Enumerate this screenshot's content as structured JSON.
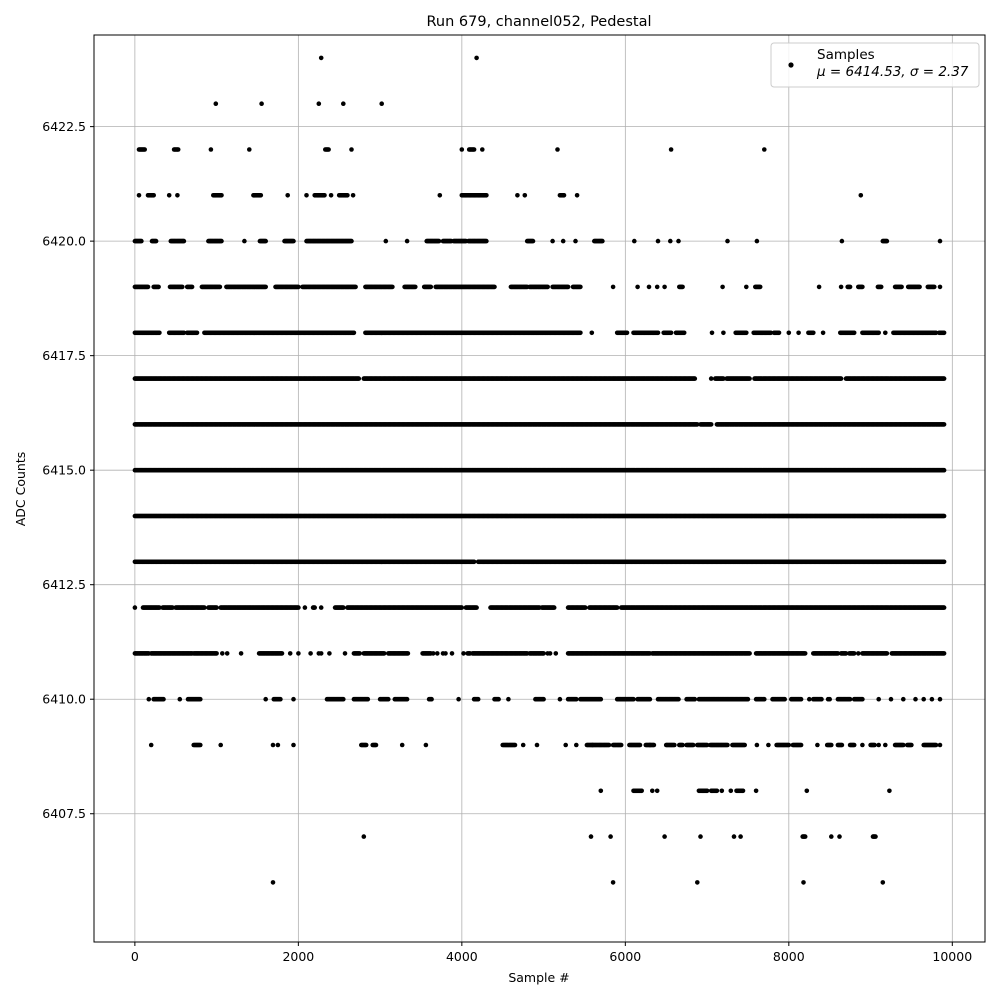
{
  "chart_data": {
    "type": "scatter",
    "title": "Run 679, channel052, Pedestal",
    "xlabel": "Sample #",
    "ylabel": "ADC Counts",
    "xlim": [
      -500,
      10400
    ],
    "ylim": [
      6404.7,
      6424.5
    ],
    "x_ticks": [
      0,
      2000,
      4000,
      6000,
      8000,
      10000
    ],
    "y_ticks": [
      6407.5,
      6410.0,
      6412.5,
      6415.0,
      6417.5,
      6420.0,
      6422.5
    ],
    "x_tick_labels": [
      "0",
      "2000",
      "4000",
      "6000",
      "8000",
      "10000"
    ],
    "y_tick_labels": [
      "6407.5",
      "6410.0",
      "6412.5",
      "6415.0",
      "6417.5",
      "6420.0",
      "6422.5"
    ],
    "grid": true,
    "legend": {
      "placement": "top-right",
      "entries": [
        {
          "name": "Samples",
          "stats": "μ = 6414.53, σ = 2.37"
        }
      ]
    },
    "marker_color": "#000000",
    "series": [
      {
        "name": "Samples",
        "runs": [
          {
            "y": 6424,
            "x": [
              2280,
              4180
            ]
          },
          {
            "y": 6423,
            "x": [
              990,
              1550,
              2250,
              2550,
              3020
            ]
          },
          {
            "y": 6422,
            "x": [
              [
                50,
                120
              ],
              1400,
              [
                480,
                530
              ],
              930,
              [
                2330,
                2370
              ],
              2650,
              4000,
              [
                4090,
                4150
              ],
              4250,
              5170,
              6560,
              7700
            ]
          },
          {
            "y": 6421,
            "x": [
              50,
              [
                160,
                230
              ],
              420,
              520,
              [
                960,
                1060
              ],
              [
                1450,
                1540
              ],
              1870,
              2100,
              [
                2200,
                2320
              ],
              2400,
              [
                2500,
                2600
              ],
              2670,
              3730,
              [
                4000,
                4300
              ],
              4680,
              4770,
              [
                5200,
                5250
              ],
              5410,
              8880
            ]
          },
          {
            "y": 6420,
            "x": [
              [
                0,
                80
              ],
              [
                210,
                260
              ],
              [
                440,
                600
              ],
              [
                900,
                1060
              ],
              1340,
              [
                1530,
                1600
              ],
              [
                1830,
                1940
              ],
              [
                2100,
                2650
              ],
              3070,
              3330,
              [
                3570,
                3720
              ],
              [
                3770,
                3870
              ],
              [
                3900,
                4050
              ],
              [
                4080,
                4300
              ],
              [
                4800,
                4870
              ],
              5110,
              5240,
              5390,
              [
                5620,
                5720
              ],
              6110,
              6400,
              6550,
              6650,
              7250,
              7610,
              8650,
              [
                9150,
                9200
              ],
              9850
            ]
          },
          {
            "y": 6419,
            "x": [
              [
                0,
                160
              ],
              [
                230,
                290
              ],
              [
                430,
                580
              ],
              [
                640,
                700
              ],
              [
                820,
                1040
              ],
              [
                1120,
                1600
              ],
              [
                1720,
                2000
              ],
              [
                2050,
                2700
              ],
              [
                2820,
                3150
              ],
              [
                3300,
                3430
              ],
              [
                3540,
                3620
              ],
              [
                3680,
                4400
              ],
              [
                4600,
                4800
              ],
              [
                4830,
                5050
              ],
              [
                5110,
                5300
              ],
              [
                5360,
                5450
              ],
              5850,
              6150,
              6290,
              6390,
              6480,
              [
                6660,
                6700
              ],
              7190,
              7480,
              [
                7590,
                7650
              ],
              8370,
              8640,
              [
                8720,
                8750
              ],
              [
                8850,
                8900
              ],
              [
                9090,
                9130
              ],
              [
                9300,
                9380
              ],
              [
                9460,
                9600
              ],
              [
                9700,
                9780
              ],
              9850
            ]
          },
          {
            "y": 6418,
            "x": [
              [
                0,
                300
              ],
              [
                420,
                600
              ],
              [
                640,
                760
              ],
              [
                850,
                2120
              ],
              [
                2130,
                2680
              ],
              [
                2820,
                5450
              ],
              5590,
              [
                5900,
                6020
              ],
              [
                6100,
                6400
              ],
              [
                6470,
                6560
              ],
              [
                6620,
                6720
              ],
              7060,
              7200,
              [
                7350,
                7480
              ],
              [
                7570,
                7780
              ],
              [
                7820,
                7880
              ],
              8000,
              8120,
              [
                8240,
                8300
              ],
              8420,
              [
                8630,
                8800
              ],
              [
                8900,
                9100
              ],
              9180,
              [
                9280,
                9800
              ],
              [
                9840,
                9900
              ]
            ]
          },
          {
            "y": 6417,
            "x": [
              [
                0,
                2740
              ],
              [
                2800,
                6850
              ],
              7050,
              [
                7100,
                7200
              ],
              [
                7240,
                7520
              ],
              [
                7580,
                8640
              ],
              [
                8700,
                9900
              ]
            ]
          },
          {
            "y": 6416,
            "x": [
              [
                0,
                6880
              ],
              [
                6920,
                7050
              ],
              [
                7120,
                9900
              ]
            ]
          },
          {
            "y": 6415,
            "x": [
              [
                0,
                9900
              ]
            ]
          },
          {
            "y": 6414,
            "x": [
              [
                0,
                9900
              ]
            ]
          },
          {
            "y": 6413,
            "x": [
              [
                0,
                4150
              ],
              [
                4200,
                9900
              ]
            ]
          },
          {
            "y": 6412,
            "x": [
              0,
              [
                100,
                300
              ],
              [
                340,
                460
              ],
              [
                500,
                850
              ],
              [
                900,
                1000
              ],
              [
                1050,
                2000
              ],
              2080,
              [
                2180,
                2200
              ],
              2280,
              [
                2450,
                2550
              ],
              [
                2600,
                4000
              ],
              [
                4050,
                4180
              ],
              [
                4350,
                4950
              ],
              [
                4980,
                5130
              ],
              [
                5300,
                5510
              ],
              [
                5560,
                5900
              ],
              [
                5950,
                9900
              ]
            ]
          },
          {
            "y": 6411,
            "x": [
              [
                0,
                170
              ],
              [
                200,
                700
              ],
              [
                720,
                1000
              ],
              1070,
              1130,
              1300,
              [
                1520,
                1800
              ],
              1900,
              2000,
              2150,
              2250,
              2280,
              2380,
              2570,
              [
                2680,
                2750
              ],
              [
                2800,
                3050
              ],
              [
                3100,
                3340
              ],
              [
                3520,
                3620
              ],
              3650,
              3700,
              3770,
              3800,
              3880,
              4020,
              [
                4070,
                4100
              ],
              [
                4130,
                4800
              ],
              [
                4830,
                5000
              ],
              5050,
              5080,
              5150,
              [
                5300,
                6300
              ],
              [
                6330,
                7520
              ],
              [
                7600,
                8200
              ],
              [
                8300,
                8600
              ],
              [
                8640,
                8700
              ],
              [
                8740,
                8800
              ],
              8850,
              [
                8900,
                9200
              ],
              [
                9260,
                9900
              ]
            ]
          },
          {
            "y": 6410,
            "x": [
              170,
              [
                230,
                350
              ],
              550,
              [
                650,
                800
              ],
              1600,
              [
                1700,
                1780
              ],
              1940,
              [
                2350,
                2550
              ],
              [
                2680,
                2850
              ],
              [
                3000,
                3100
              ],
              [
                3180,
                3330
              ],
              [
                3600,
                3630
              ],
              3960,
              [
                4150,
                4200
              ],
              [
                4400,
                4450
              ],
              4570,
              [
                4900,
                5000
              ],
              5200,
              [
                5300,
                5400
              ],
              [
                5450,
                5700
              ],
              [
                5900,
                6100
              ],
              [
                6150,
                6300
              ],
              [
                6400,
                6650
              ],
              [
                6750,
                6850
              ],
              [
                6900,
                7500
              ],
              [
                7600,
                7700
              ],
              [
                7800,
                7950
              ],
              [
                8030,
                8150
              ],
              8250,
              [
                8300,
                8400
              ],
              8480,
              8500,
              [
                8600,
                8750
              ],
              [
                8800,
                8900
              ],
              9100,
              9250,
              9400,
              9550,
              9650,
              9750,
              9850
            ]
          },
          {
            "y": 6409,
            "x": [
              200,
              [
                720,
                800
              ],
              1050,
              1690,
              1750,
              1940,
              [
                2770,
                2830
              ],
              [
                2910,
                2950
              ],
              3270,
              3560,
              [
                4500,
                4650
              ],
              4750,
              4920,
              5270,
              5400,
              [
                5530,
                5600
              ],
              [
                5600,
                5800
              ],
              [
                5850,
                5950
              ],
              [
                6050,
                6180
              ],
              [
                6250,
                6300
              ],
              [
                6300,
                6350
              ],
              [
                6500,
                6600
              ],
              [
                6660,
                6700
              ],
              [
                6750,
                6830
              ],
              [
                6880,
                7000
              ],
              [
                7040,
                7250
              ],
              [
                7310,
                7460
              ],
              7610,
              7750,
              [
                7850,
                8000
              ],
              [
                8050,
                8150
              ],
              8350,
              [
                8470,
                8520
              ],
              [
                8600,
                8650
              ],
              [
                8750,
                8800
              ],
              8900,
              [
                9000,
                9050
              ],
              9100,
              9180,
              [
                9300,
                9400
              ],
              [
                9450,
                9500
              ],
              [
                9650,
                9800
              ],
              9850
            ]
          },
          {
            "y": 6408,
            "x": [
              5700,
              [
                6100,
                6200
              ],
              6330,
              6390,
              [
                6900,
                7000
              ],
              [
                7050,
                7120
              ],
              7180,
              7290,
              [
                7360,
                7440
              ],
              7600,
              8220,
              9230
            ]
          },
          {
            "y": 6407,
            "x": [
              2800,
              5580,
              5820,
              6480,
              6920,
              7330,
              7410,
              [
                8170,
                8200
              ],
              8520,
              8620,
              [
                9030,
                9060
              ]
            ]
          },
          {
            "y": 6406,
            "x": [
              1690,
              5850,
              6880,
              8180,
              9150
            ]
          }
        ]
      }
    ]
  }
}
